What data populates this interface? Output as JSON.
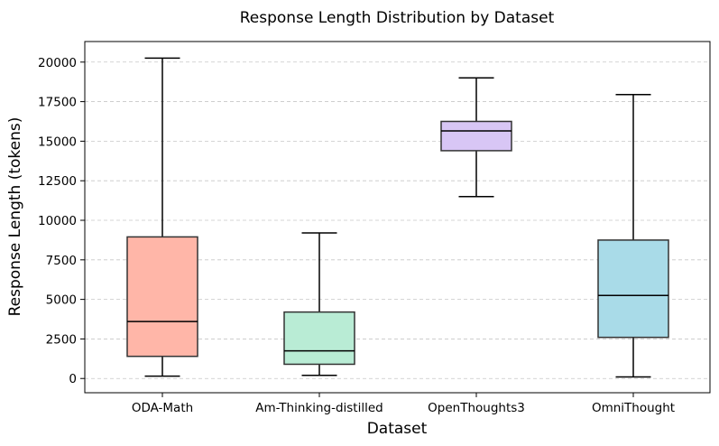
{
  "chart_data": {
    "type": "box",
    "title": "Response Length Distribution by Dataset",
    "xlabel": "Dataset",
    "ylabel": "Response Length (tokens)",
    "ylim": [
      -900,
      21300
    ],
    "yticks": [
      0,
      2500,
      5000,
      7500,
      10000,
      12500,
      15000,
      17500,
      20000
    ],
    "grid": "y-dashed",
    "categories": [
      "ODA-Math",
      "Am-Thinking-distilled",
      "OpenThoughts3",
      "OmniThought"
    ],
    "boxes": [
      {
        "label": "ODA-Math",
        "whisker_low": 150,
        "q1": 1400,
        "median": 3600,
        "q3": 8950,
        "whisker_high": 20250,
        "color": "#ffb6a8"
      },
      {
        "label": "Am-Thinking-distilled",
        "whisker_low": 200,
        "q1": 900,
        "median": 1750,
        "q3": 4200,
        "whisker_high": 9200,
        "color": "#b9ecd5"
      },
      {
        "label": "OpenThoughts3",
        "whisker_low": 11500,
        "q1": 14400,
        "median": 15650,
        "q3": 16250,
        "whisker_high": 19000,
        "color": "#d8c6f5"
      },
      {
        "label": "OmniThought",
        "whisker_low": 100,
        "q1": 2600,
        "median": 5250,
        "q3": 8750,
        "whisker_high": 17950,
        "color": "#a9dbe8"
      }
    ]
  }
}
